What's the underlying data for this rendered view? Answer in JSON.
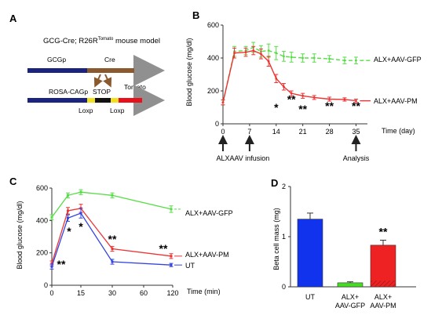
{
  "chart_data": [
    {
      "panel": "A",
      "type": "diagram",
      "title": "GCG-Cre; R26R",
      "title_sup": "Tomato",
      "title_tail": " mouse model",
      "row1": [
        "GCGp",
        "Cre"
      ],
      "row2": [
        "ROSA-CAGp",
        "STOP",
        "Tomato"
      ],
      "loxp": [
        "Loxp",
        "Loxp"
      ]
    },
    {
      "panel": "B",
      "type": "line",
      "xlabel": "Time (day)",
      "ylabel": "Blood glucose (mg/dl)",
      "xlim": [
        0,
        38
      ],
      "ylim": [
        0,
        600
      ],
      "xticks": [
        0,
        7,
        14,
        21,
        28,
        35
      ],
      "yticks": [
        0,
        200,
        400,
        600
      ],
      "series": [
        {
          "name": "ALX+AAV-GFP",
          "color": "#55dd44",
          "dashed": true,
          "x": [
            0,
            3,
            6,
            8,
            10,
            12,
            14,
            16,
            18,
            21,
            24,
            28,
            32,
            35
          ],
          "y": [
            130,
            440,
            445,
            465,
            440,
            445,
            430,
            410,
            405,
            400,
            400,
            395,
            385,
            385
          ],
          "err": [
            15,
            30,
            25,
            30,
            35,
            40,
            40,
            30,
            30,
            25,
            25,
            20,
            20,
            20
          ]
        },
        {
          "name": "ALX+AAV-PM",
          "color": "#ee3333",
          "dashed": false,
          "x": [
            0,
            3,
            6,
            8,
            10,
            12,
            14,
            16,
            18,
            21,
            24,
            28,
            32,
            35
          ],
          "y": [
            130,
            430,
            435,
            445,
            425,
            380,
            275,
            225,
            185,
            170,
            160,
            150,
            148,
            140
          ],
          "err": [
            15,
            30,
            25,
            25,
            30,
            30,
            25,
            20,
            15,
            15,
            12,
            12,
            10,
            10
          ]
        }
      ],
      "annotations": [
        "*",
        "**",
        "**",
        "**",
        "**"
      ],
      "events": [
        "ALX",
        "AAV infusion",
        "Analysis"
      ]
    },
    {
      "panel": "C",
      "type": "line",
      "xlabel": "Time (min)",
      "ylabel": "Blood glucose (mg/dl)",
      "ylim": [
        0,
        600
      ],
      "xticks": [
        "0",
        "15",
        "30",
        "60",
        "120"
      ],
      "yticks": [
        0,
        200,
        400,
        600
      ],
      "series": [
        {
          "name": "ALX+AAV-GFP",
          "color": "#55dd44",
          "x": [
            0,
            7.5,
            15,
            30,
            120
          ],
          "y": [
            420,
            555,
            575,
            555,
            470
          ],
          "err": [
            15,
            15,
            15,
            15,
            20
          ]
        },
        {
          "name": "ALX+AAV-PM",
          "color": "#ee3333",
          "x": [
            0,
            7.5,
            15,
            30,
            120
          ],
          "y": [
            135,
            460,
            475,
            225,
            180
          ],
          "err": [
            15,
            20,
            25,
            15,
            15
          ]
        },
        {
          "name": "UT",
          "color": "#3344dd",
          "x": [
            0,
            7.5,
            15,
            30,
            120
          ],
          "y": [
            115,
            415,
            445,
            145,
            125
          ],
          "err": [
            15,
            20,
            30,
            15,
            10
          ]
        }
      ],
      "annotations": [
        "**",
        "*",
        "*",
        "**",
        "**"
      ]
    },
    {
      "panel": "D",
      "type": "bar",
      "ylabel": "Beta cell mass (mg)",
      "ylim": [
        0,
        2
      ],
      "yticks": [
        0,
        1,
        2
      ],
      "categories": [
        "UT",
        "ALX+\nAAV-GFP",
        "ALX+\nAAV-PM"
      ],
      "values": [
        1.35,
        0.08,
        0.83
      ],
      "err": [
        0.12,
        0.02,
        0.1
      ],
      "colors": [
        "#1133ee",
        "#44dd22",
        "#ee2222"
      ],
      "annotations": [
        "**"
      ]
    }
  ]
}
